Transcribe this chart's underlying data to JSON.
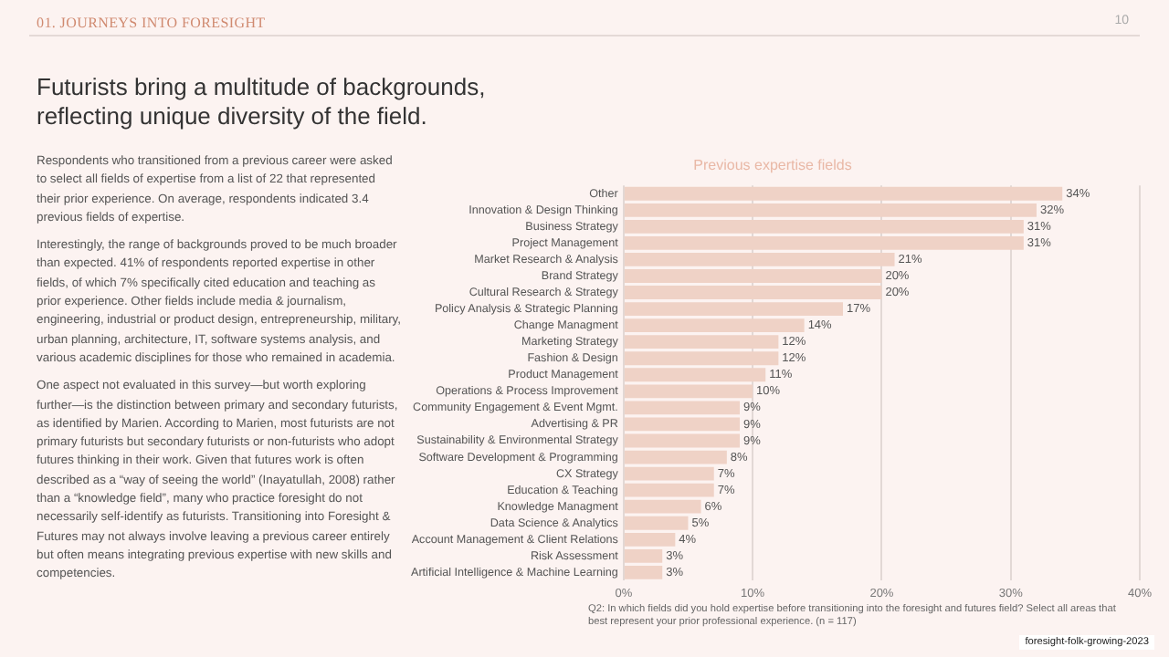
{
  "chart_data": {
    "type": "bar",
    "orientation": "horizontal",
    "title": "Previous expertise fields",
    "categories": [
      "Other",
      "Innovation & Design Thinking",
      "Business Strategy",
      "Project Management",
      "Market Research & Analysis",
      "Brand Strategy",
      "Cultural Research & Strategy",
      "Policy Analysis & Strategic Planning",
      "Change Managment",
      "Marketing Strategy",
      "Fashion & Design",
      "Product Management",
      "Operations & Process Improvement",
      "Community Engagement & Event Mgmt.",
      "Advertising & PR",
      "Sustainability & Environmental Strategy",
      "Software Development & Programming",
      "CX Strategy",
      "Education & Teaching",
      "Knowledge Managment",
      "Data Science & Analytics",
      "Account Management & Client Relations",
      "Risk Assessment",
      "Artificial Intelligence & Machine Learning"
    ],
    "values": [
      34,
      32,
      31,
      31,
      21,
      20,
      20,
      17,
      14,
      12,
      12,
      11,
      10,
      9,
      9,
      9,
      8,
      7,
      7,
      6,
      5,
      4,
      3,
      3
    ],
    "value_labels": [
      "34%",
      "32%",
      "31%",
      "31%",
      "21%",
      "20%",
      "20%",
      "17%",
      "14%",
      "12%",
      "12%",
      "11%",
      "10%",
      "9%",
      "9%",
      "9%",
      "8%",
      "7%",
      "7%",
      "6%",
      "5%",
      "4%",
      "3%",
      "3%"
    ],
    "color": "#efd2c6",
    "xlim": [
      0,
      40
    ],
    "xticks": [
      {
        "value": 0,
        "label": "0%"
      },
      {
        "value": 10,
        "label": "10%"
      },
      {
        "value": 20,
        "label": "20%"
      },
      {
        "value": 30,
        "label": "30%"
      },
      {
        "value": 40,
        "label": "40%"
      }
    ],
    "grid": "x",
    "legend": false,
    "annotations": [
      "01. JOURNEYS INTO FORESIGHT",
      "10",
      "Futurists bring a multitude of backgrounds, reflecting unique diversity of the field.",
      "Respondents who transitioned from a previous career were asked to select all fields of expertise from a list of 22 that represented their prior experience. On average, respondents indicated 3.4 previous fields of expertise.",
      "Interestingly, the range of backgrounds proved to be much broader than expected. 41% of respondents reported expertise in other fields, of which 7% specifically cited education and teaching as prior experience. Other fields include media & journalism, engineering, industrial or product design, entrepreneurship, military, urban planning, architecture, IT, software systems analysis, and various academic disciplines for those who remained in academia.",
      "One aspect not evaluated in this survey—but worth exploring further—is the distinction between primary and secondary futurists, as identified by Marien. According to Marien, most futurists are not primary futurists but secondary futurists or non-futurists who adopt futures thinking in their work. Given that futures work is often described as a “way of seeing the world” (Inayatullah, 2008) rather than a “knowledge field”, many who practice foresight do not necessarily self-identify as futurists. Transitioning into Foresight & Futures may not always involve leaving a previous career entirely but often means integrating previous expertise with new skills and competencies.",
      "Q2: In which fields did you hold expertise before transitioning into the foresight and futures field? Select all areas that best represent your prior professional experience. (n = 117)",
      "foresight-folk-growing-2023"
    ]
  }
}
